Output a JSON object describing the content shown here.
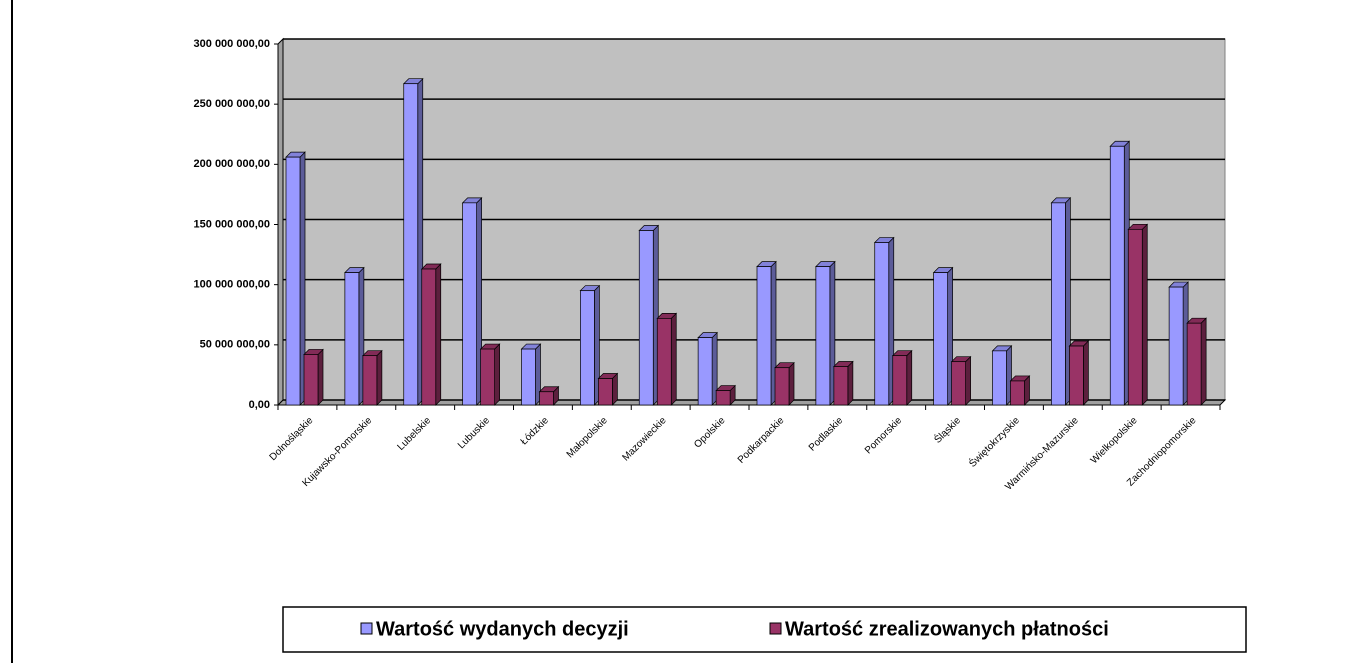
{
  "chart_data": {
    "type": "bar",
    "categories": [
      "Dolnośląskie",
      "Kujawsko-Pomorskie",
      "Lubelskie",
      "Lubuskie",
      "Łódzkie",
      "Małopolskie",
      "Mazowieckie",
      "Opolskie",
      "Podkarpackie",
      "Podlaskie",
      "Pomorskie",
      "Śląskie",
      "Świętokrzyskie",
      "Warmińsko-Mazurskie",
      "Wielkopolskie",
      "Zachodniopomorskie"
    ],
    "series": [
      {
        "name": "Wartość wydanych decyzji",
        "color": "#9999ff",
        "values": [
          206000000,
          110000000,
          267000000,
          168000000,
          46500000,
          95000000,
          145000000,
          56000000,
          115000000,
          115000000,
          135000000,
          110000000,
          45000000,
          168000000,
          215000000,
          98000000
        ]
      },
      {
        "name": "Wartość zrealizowanych płatności",
        "color": "#993366",
        "values": [
          42000000,
          41000000,
          113000000,
          46500000,
          11000000,
          22000000,
          72000000,
          12000000,
          31000000,
          32000000,
          41000000,
          36000000,
          20000000,
          49000000,
          146000000,
          68000000
        ]
      }
    ],
    "ylim": [
      0,
      300000000
    ],
    "yticks": [
      {
        "value": 0,
        "label": "0,00"
      },
      {
        "value": 50000000,
        "label": "50 000 000,00"
      },
      {
        "value": 100000000,
        "label": "100 000 000,00"
      },
      {
        "value": 150000000,
        "label": "150 000 000,00"
      },
      {
        "value": 200000000,
        "label": "200 000 000,00"
      },
      {
        "value": 250000000,
        "label": "250 000 000,00"
      },
      {
        "value": 300000000,
        "label": "300 000 000,00"
      }
    ],
    "grid": true
  }
}
